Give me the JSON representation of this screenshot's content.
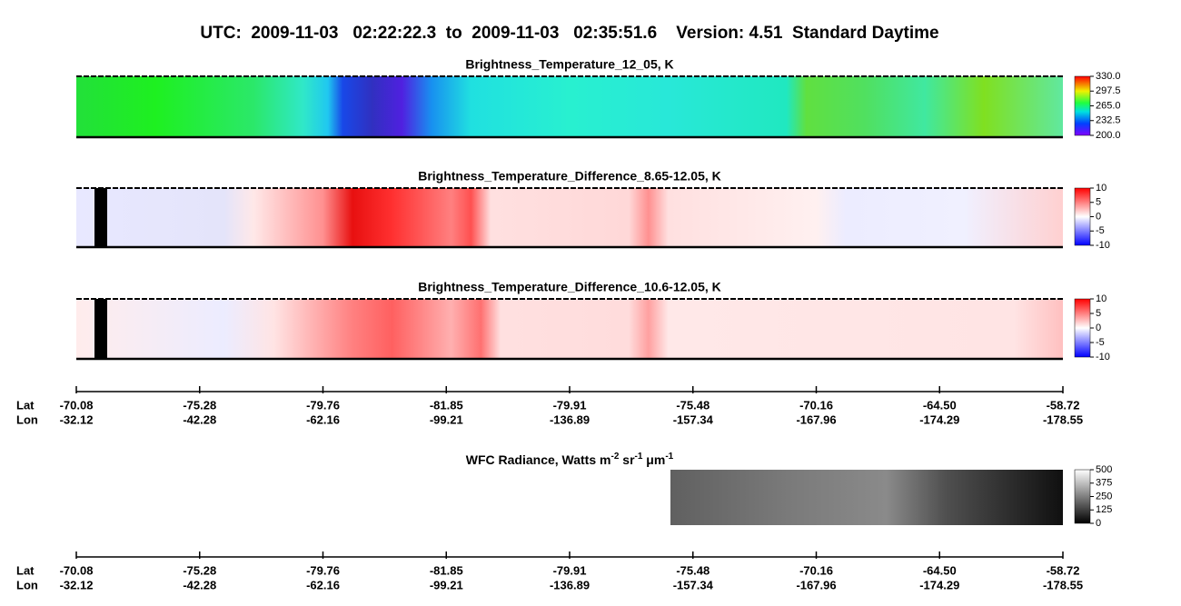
{
  "title": "UTC:  2009-11-03   02:22:22.3  to  2009-11-03   02:35:51.6    Version: 4.51  Standard Daytime",
  "panels": [
    {
      "title": "Brightness_Temperature_12_05, K",
      "colorbar": [
        "330.0",
        "297.5",
        "265.0",
        "232.5",
        "200.0"
      ]
    },
    {
      "title": "Brightness_Temperature_Difference_8.65-12.05, K",
      "colorbar": [
        "10",
        "5",
        "0",
        "-5",
        "-10"
      ]
    },
    {
      "title": "Brightness_Temperature_Difference_10.6-12.05, K",
      "colorbar": [
        "10",
        "5",
        "0",
        "-5",
        "-10"
      ]
    }
  ],
  "wfc": {
    "title": [
      "WFC Radiance, Watts m",
      "-2",
      " sr",
      "-1",
      " μm",
      "-1"
    ],
    "colorbar": [
      "500",
      "375",
      "250",
      "125",
      "0"
    ]
  },
  "axes": [
    {
      "lat_label": "Lat",
      "lon_label": "Lon",
      "lat": [
        "-70.08",
        "-75.28",
        "-79.76",
        "-81.85",
        "-79.91",
        "-75.48",
        "-70.16",
        "-64.50",
        "-58.72"
      ],
      "lon": [
        "-32.12",
        "-42.28",
        "-62.16",
        "-99.21",
        "-136.89",
        "-157.34",
        "-167.96",
        "-174.29",
        "-178.55"
      ]
    },
    {
      "lat_label": "Lat",
      "lon_label": "Lon",
      "lat": [
        "-70.08",
        "-75.28",
        "-79.76",
        "-81.85",
        "-79.91",
        "-75.48",
        "-70.16",
        "-64.50",
        "-58.72"
      ],
      "lon": [
        "-32.12",
        "-42.28",
        "-62.16",
        "-99.21",
        "-136.89",
        "-157.34",
        "-167.96",
        "-174.29",
        "-178.55"
      ]
    }
  ]
}
